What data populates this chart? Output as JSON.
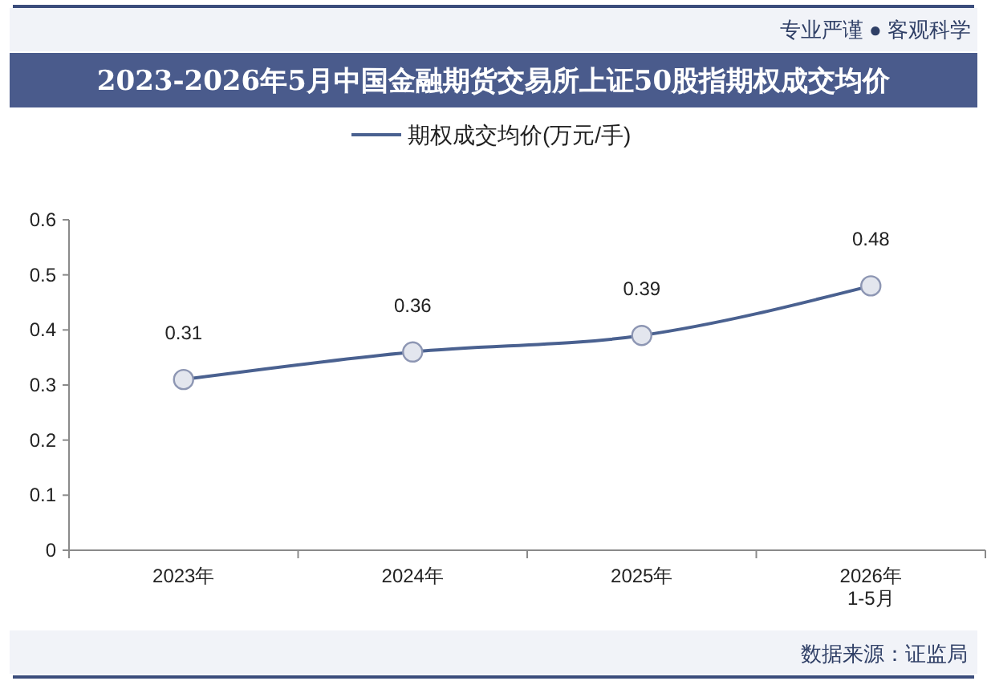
{
  "chart_data": {
    "type": "line",
    "title": "2023-2026年5月中国金融期货交易所上证50股指期权成交均价",
    "categories": [
      "2023年",
      "2024年",
      "2025年",
      "2026年\n1-5月"
    ],
    "series": [
      {
        "name": "期权成交均价(万元/手)",
        "color": "#4a6190",
        "values": [
          0.31,
          0.36,
          0.39,
          0.48
        ]
      }
    ],
    "ylim": [
      0,
      0.6
    ],
    "yticks": [
      0,
      0.1,
      0.2,
      0.3,
      0.4,
      0.5,
      0.6
    ],
    "data_labels": true,
    "legend": "top",
    "marker": "circle",
    "line_style": "solid",
    "grid": false,
    "annotations": [
      "专业严谨 ● 客观科学",
      "数据来源：证监局"
    ]
  }
}
